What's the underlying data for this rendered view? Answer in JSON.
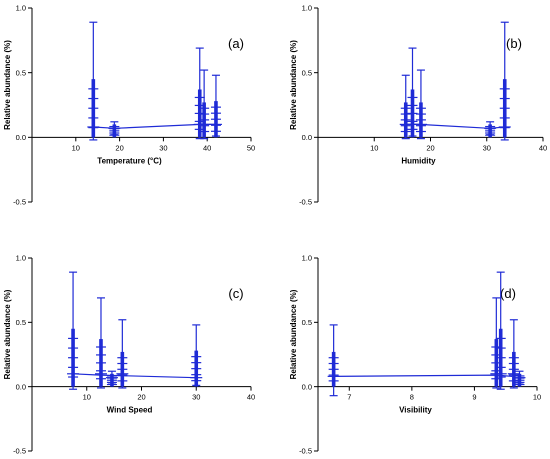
{
  "chart_data": [
    {
      "type": "scatter",
      "panel_label": "(a)",
      "xlabel": "Temperature (°C)",
      "ylabel": "Relative abundance (%)",
      "xlim": [
        0,
        50
      ],
      "ylim": [
        -0.5,
        1.0
      ],
      "xticks": [
        10,
        20,
        30,
        40,
        50
      ],
      "yticks": [
        -0.5,
        0,
        0.5,
        1.0
      ],
      "ytick_labels": [
        "-0.5",
        "0.0",
        "0.5",
        "1.0"
      ],
      "line": [
        [
          14,
          0.08
        ],
        [
          19,
          0.07
        ],
        [
          38.5,
          0.1
        ],
        [
          42,
          0.1
        ]
      ],
      "clusters": [
        {
          "x": 14,
          "mean": 0.08,
          "max": 0.89,
          "min": -0.02,
          "bar": 0.45
        },
        {
          "x": 18.8,
          "mean": 0.07,
          "max": 0.12,
          "min": 0.02,
          "bar": 0.1
        },
        {
          "x": 38.3,
          "mean": 0.1,
          "max": 0.69,
          "min": -0.01,
          "bar": 0.37
        },
        {
          "x": 39.3,
          "mean": 0.1,
          "max": 0.52,
          "min": -0.01,
          "bar": 0.27
        },
        {
          "x": 42,
          "mean": 0.1,
          "max": 0.48,
          "min": 0.01,
          "bar": 0.28
        }
      ]
    },
    {
      "type": "scatter",
      "panel_label": "(b)",
      "xlabel": "Humidity",
      "ylabel": "Relative abundance (%)",
      "xlim": [
        0,
        40
      ],
      "ylim": [
        -0.5,
        1.0
      ],
      "xticks": [
        10,
        20,
        30,
        40
      ],
      "yticks": [
        -0.5,
        0,
        0.5,
        1.0
      ],
      "ytick_labels": [
        "-0.5",
        "0.0",
        "0.5",
        "1.0"
      ],
      "line": [
        [
          15.8,
          0.1
        ],
        [
          18,
          0.1
        ],
        [
          30.5,
          0.07
        ],
        [
          33.2,
          0.08
        ]
      ],
      "clusters": [
        {
          "x": 15.6,
          "mean": 0.1,
          "max": 0.48,
          "min": -0.01,
          "bar": 0.27
        },
        {
          "x": 16.8,
          "mean": 0.1,
          "max": 0.69,
          "min": 0.01,
          "bar": 0.37
        },
        {
          "x": 18.3,
          "mean": 0.1,
          "max": 0.52,
          "min": -0.01,
          "bar": 0.27
        },
        {
          "x": 30.6,
          "mean": 0.07,
          "max": 0.12,
          "min": 0.02,
          "bar": 0.1
        },
        {
          "x": 33.2,
          "mean": 0.08,
          "max": 0.89,
          "min": -0.02,
          "bar": 0.45
        }
      ]
    },
    {
      "type": "scatter",
      "panel_label": "(c)",
      "xlabel": "Wind Speed",
      "ylabel": "Relative abundance (%)",
      "xlim": [
        0,
        40
      ],
      "ylim": [
        -0.5,
        1.0
      ],
      "xticks": [
        10,
        20,
        30,
        40
      ],
      "yticks": [
        -0.5,
        0,
        0.5,
        1.0
      ],
      "ytick_labels": [
        "-0.5",
        "0.0",
        "0.5",
        "1.0"
      ],
      "line": [
        [
          7.5,
          0.1
        ],
        [
          12.5,
          0.09
        ],
        [
          30,
          0.07
        ]
      ],
      "clusters": [
        {
          "x": 7.5,
          "mean": 0.1,
          "max": 0.89,
          "min": -0.02,
          "bar": 0.45
        },
        {
          "x": 12.6,
          "mean": 0.1,
          "max": 0.69,
          "min": -0.01,
          "bar": 0.37
        },
        {
          "x": 14.6,
          "mean": 0.07,
          "max": 0.12,
          "min": 0.02,
          "bar": 0.1
        },
        {
          "x": 16.5,
          "mean": 0.1,
          "max": 0.52,
          "min": -0.01,
          "bar": 0.27
        },
        {
          "x": 30,
          "mean": 0.07,
          "max": 0.48,
          "min": 0.01,
          "bar": 0.28
        }
      ]
    },
    {
      "type": "scatter",
      "panel_label": "(d)",
      "xlabel": "Visibility",
      "ylabel": "Relative abundance (%)",
      "xlim": [
        6.5,
        10
      ],
      "ylim": [
        -0.5,
        1.0
      ],
      "xticks": [
        7,
        8,
        9,
        10
      ],
      "yticks": [
        -0.5,
        0,
        0.5,
        1.0
      ],
      "ytick_labels": [
        "-0.5",
        "0.0",
        "0.5",
        "1.0"
      ],
      "line": [
        [
          6.75,
          0.08
        ],
        [
          9.35,
          0.09
        ],
        [
          9.6,
          0.08
        ]
      ],
      "clusters": [
        {
          "x": 6.75,
          "mean": 0.08,
          "max": 0.48,
          "min": -0.07,
          "bar": 0.27
        },
        {
          "x": 9.35,
          "mean": 0.1,
          "max": 0.69,
          "min": -0.01,
          "bar": 0.37
        },
        {
          "x": 9.42,
          "mean": 0.1,
          "max": 0.89,
          "min": -0.02,
          "bar": 0.45
        },
        {
          "x": 9.63,
          "mean": 0.1,
          "max": 0.52,
          "min": -0.01,
          "bar": 0.27
        },
        {
          "x": 9.72,
          "mean": 0.07,
          "max": 0.12,
          "min": 0.02,
          "bar": 0.1
        }
      ]
    }
  ],
  "colors": {
    "series": "#1f2bd6",
    "axis": "#000000"
  }
}
